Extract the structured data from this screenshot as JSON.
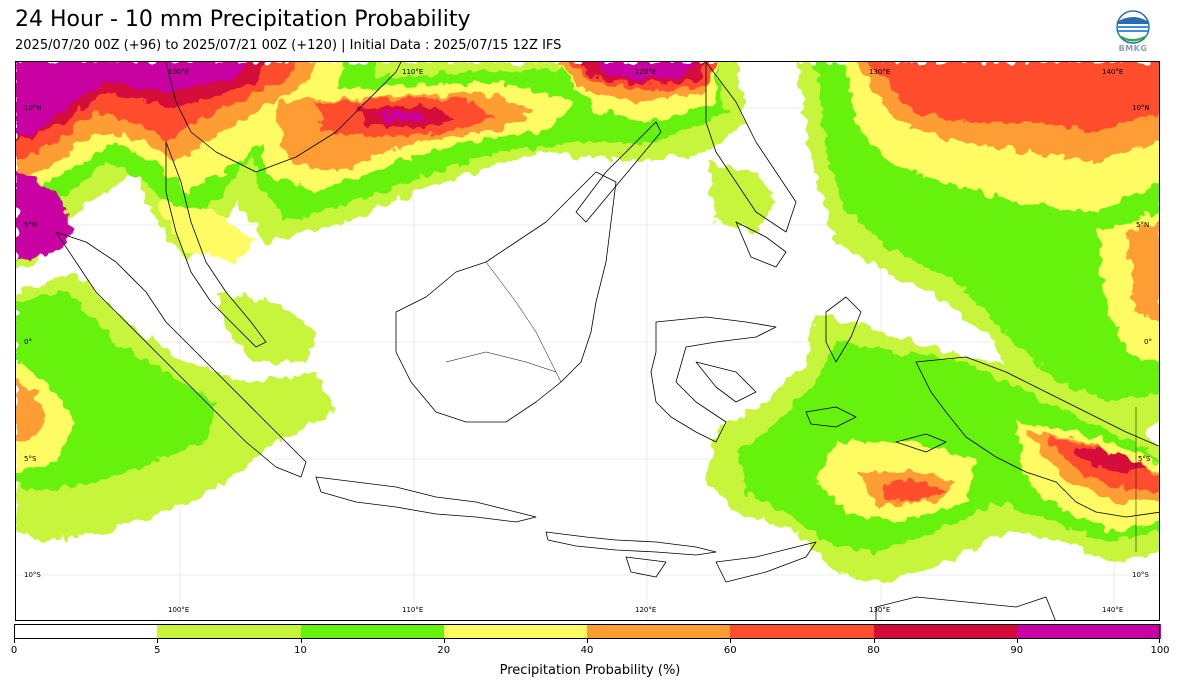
{
  "header": {
    "title": "24 Hour - 10 mm Precipitation Probability",
    "subtitle": "2025/07/20 00Z (+96) to 2025/07/21 00Z (+120) | Initial Data : 2025/07/15 12Z IFS",
    "logo_text": "BMKG"
  },
  "map": {
    "lon_labels_top": [
      "100°E",
      "110°E",
      "120°E",
      "130°E",
      "140°E"
    ],
    "lon_labels_bottom": [
      "100°E",
      "110°E",
      "120°E",
      "130°E",
      "140°E"
    ],
    "lat_labels_left": [
      "10°N",
      "5°N",
      "0°",
      "5°S",
      "10°S"
    ],
    "lat_labels_right": [
      "10°N",
      "5°N",
      "0°",
      "5°S",
      "10°S"
    ],
    "extent": {
      "lon": [
        93,
        142
      ],
      "lat": [
        -12,
        12
      ]
    }
  },
  "colorbar": {
    "title": "Precipitation Probability (%)",
    "bins": [
      {
        "from": 0,
        "to": 5,
        "color": "#ffffff"
      },
      {
        "from": 5,
        "to": 10,
        "color": "#c6f53a"
      },
      {
        "from": 10,
        "to": 20,
        "color": "#66f20c"
      },
      {
        "from": 20,
        "to": 40,
        "color": "#fefb63"
      },
      {
        "from": 40,
        "to": 60,
        "color": "#ff9d35"
      },
      {
        "from": 60,
        "to": 80,
        "color": "#ff4d2e"
      },
      {
        "from": 80,
        "to": 90,
        "color": "#d40a3b"
      },
      {
        "from": 90,
        "to": 100,
        "color": "#c900a2"
      }
    ],
    "tick_labels": [
      "0",
      "5",
      "10",
      "20",
      "40",
      "60",
      "80",
      "90",
      "100"
    ]
  }
}
